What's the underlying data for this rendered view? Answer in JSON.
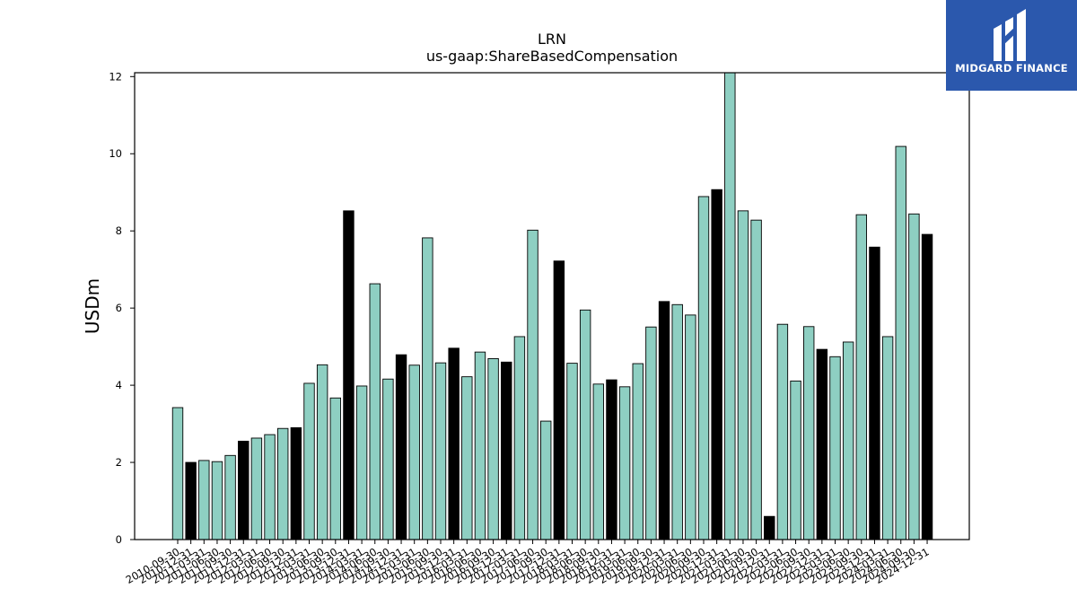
{
  "chart_data": {
    "type": "bar",
    "title": "LRN",
    "subtitle": "us-gaap:ShareBasedCompensation",
    "ylabel": "USDm",
    "xlabel": "",
    "ylim": [
      0,
      12.1
    ],
    "yticks": [
      0,
      2,
      4,
      6,
      8,
      10,
      12
    ],
    "grid": false,
    "colors": {
      "quarter": "#8ecfc2",
      "annual": "#000000",
      "edge": "#000000"
    },
    "categories": [
      "2010-09-30",
      "2010-12-31",
      "2011-03-31",
      "2011-06-30",
      "2011-09-30",
      "2011-12-31",
      "2012-03-31",
      "2012-06-30",
      "2012-09-30",
      "2012-12-31",
      "2013-03-31",
      "2013-06-30",
      "2013-09-30",
      "2013-12-31",
      "2014-03-31",
      "2014-06-30",
      "2014-09-30",
      "2014-12-31",
      "2015-03-31",
      "2015-06-30",
      "2015-09-30",
      "2015-12-31",
      "2016-03-31",
      "2016-06-30",
      "2016-09-30",
      "2016-12-31",
      "2017-03-31",
      "2017-06-30",
      "2017-09-30",
      "2017-12-31",
      "2018-03-31",
      "2018-06-30",
      "2018-09-30",
      "2018-12-31",
      "2019-03-31",
      "2019-06-30",
      "2019-09-30",
      "2019-12-31",
      "2020-03-31",
      "2020-06-30",
      "2020-09-30",
      "2020-12-31",
      "2021-03-31",
      "2021-06-30",
      "2021-09-30",
      "2021-12-31",
      "2022-03-31",
      "2022-06-30",
      "2022-09-30",
      "2022-12-31",
      "2023-03-31",
      "2023-06-30",
      "2023-09-30",
      "2023-12-31",
      "2024-03-31",
      "2024-06-30",
      "2024-09-30",
      "2024-12-31"
    ],
    "values": [
      3.42,
      2.0,
      2.05,
      2.02,
      2.18,
      2.55,
      2.63,
      2.72,
      2.88,
      2.9,
      4.05,
      4.53,
      3.67,
      8.52,
      3.98,
      6.63,
      4.16,
      4.79,
      4.52,
      7.82,
      4.58,
      4.96,
      4.22,
      4.86,
      4.69,
      4.6,
      5.26,
      8.02,
      3.07,
      7.22,
      4.57,
      5.95,
      4.03,
      4.14,
      3.96,
      4.56,
      5.51,
      6.17,
      6.09,
      5.82,
      8.89,
      9.07,
      12.18,
      8.52,
      8.28,
      0.6,
      5.58,
      4.11,
      5.52,
      4.93,
      4.74,
      5.12,
      8.42,
      7.58,
      5.26,
      10.19,
      8.44,
      7.91
    ],
    "annual": [
      false,
      true,
      false,
      false,
      false,
      true,
      false,
      false,
      false,
      true,
      false,
      false,
      false,
      true,
      false,
      false,
      false,
      true,
      false,
      false,
      false,
      true,
      false,
      false,
      false,
      true,
      false,
      false,
      false,
      true,
      false,
      false,
      false,
      true,
      false,
      false,
      false,
      true,
      false,
      false,
      false,
      true,
      false,
      false,
      false,
      true,
      false,
      false,
      false,
      true,
      false,
      false,
      false,
      true,
      false,
      false,
      false,
      true
    ]
  },
  "logo": {
    "text": "MIDGARD FINANCE",
    "icon": "midgard-logo-icon"
  }
}
